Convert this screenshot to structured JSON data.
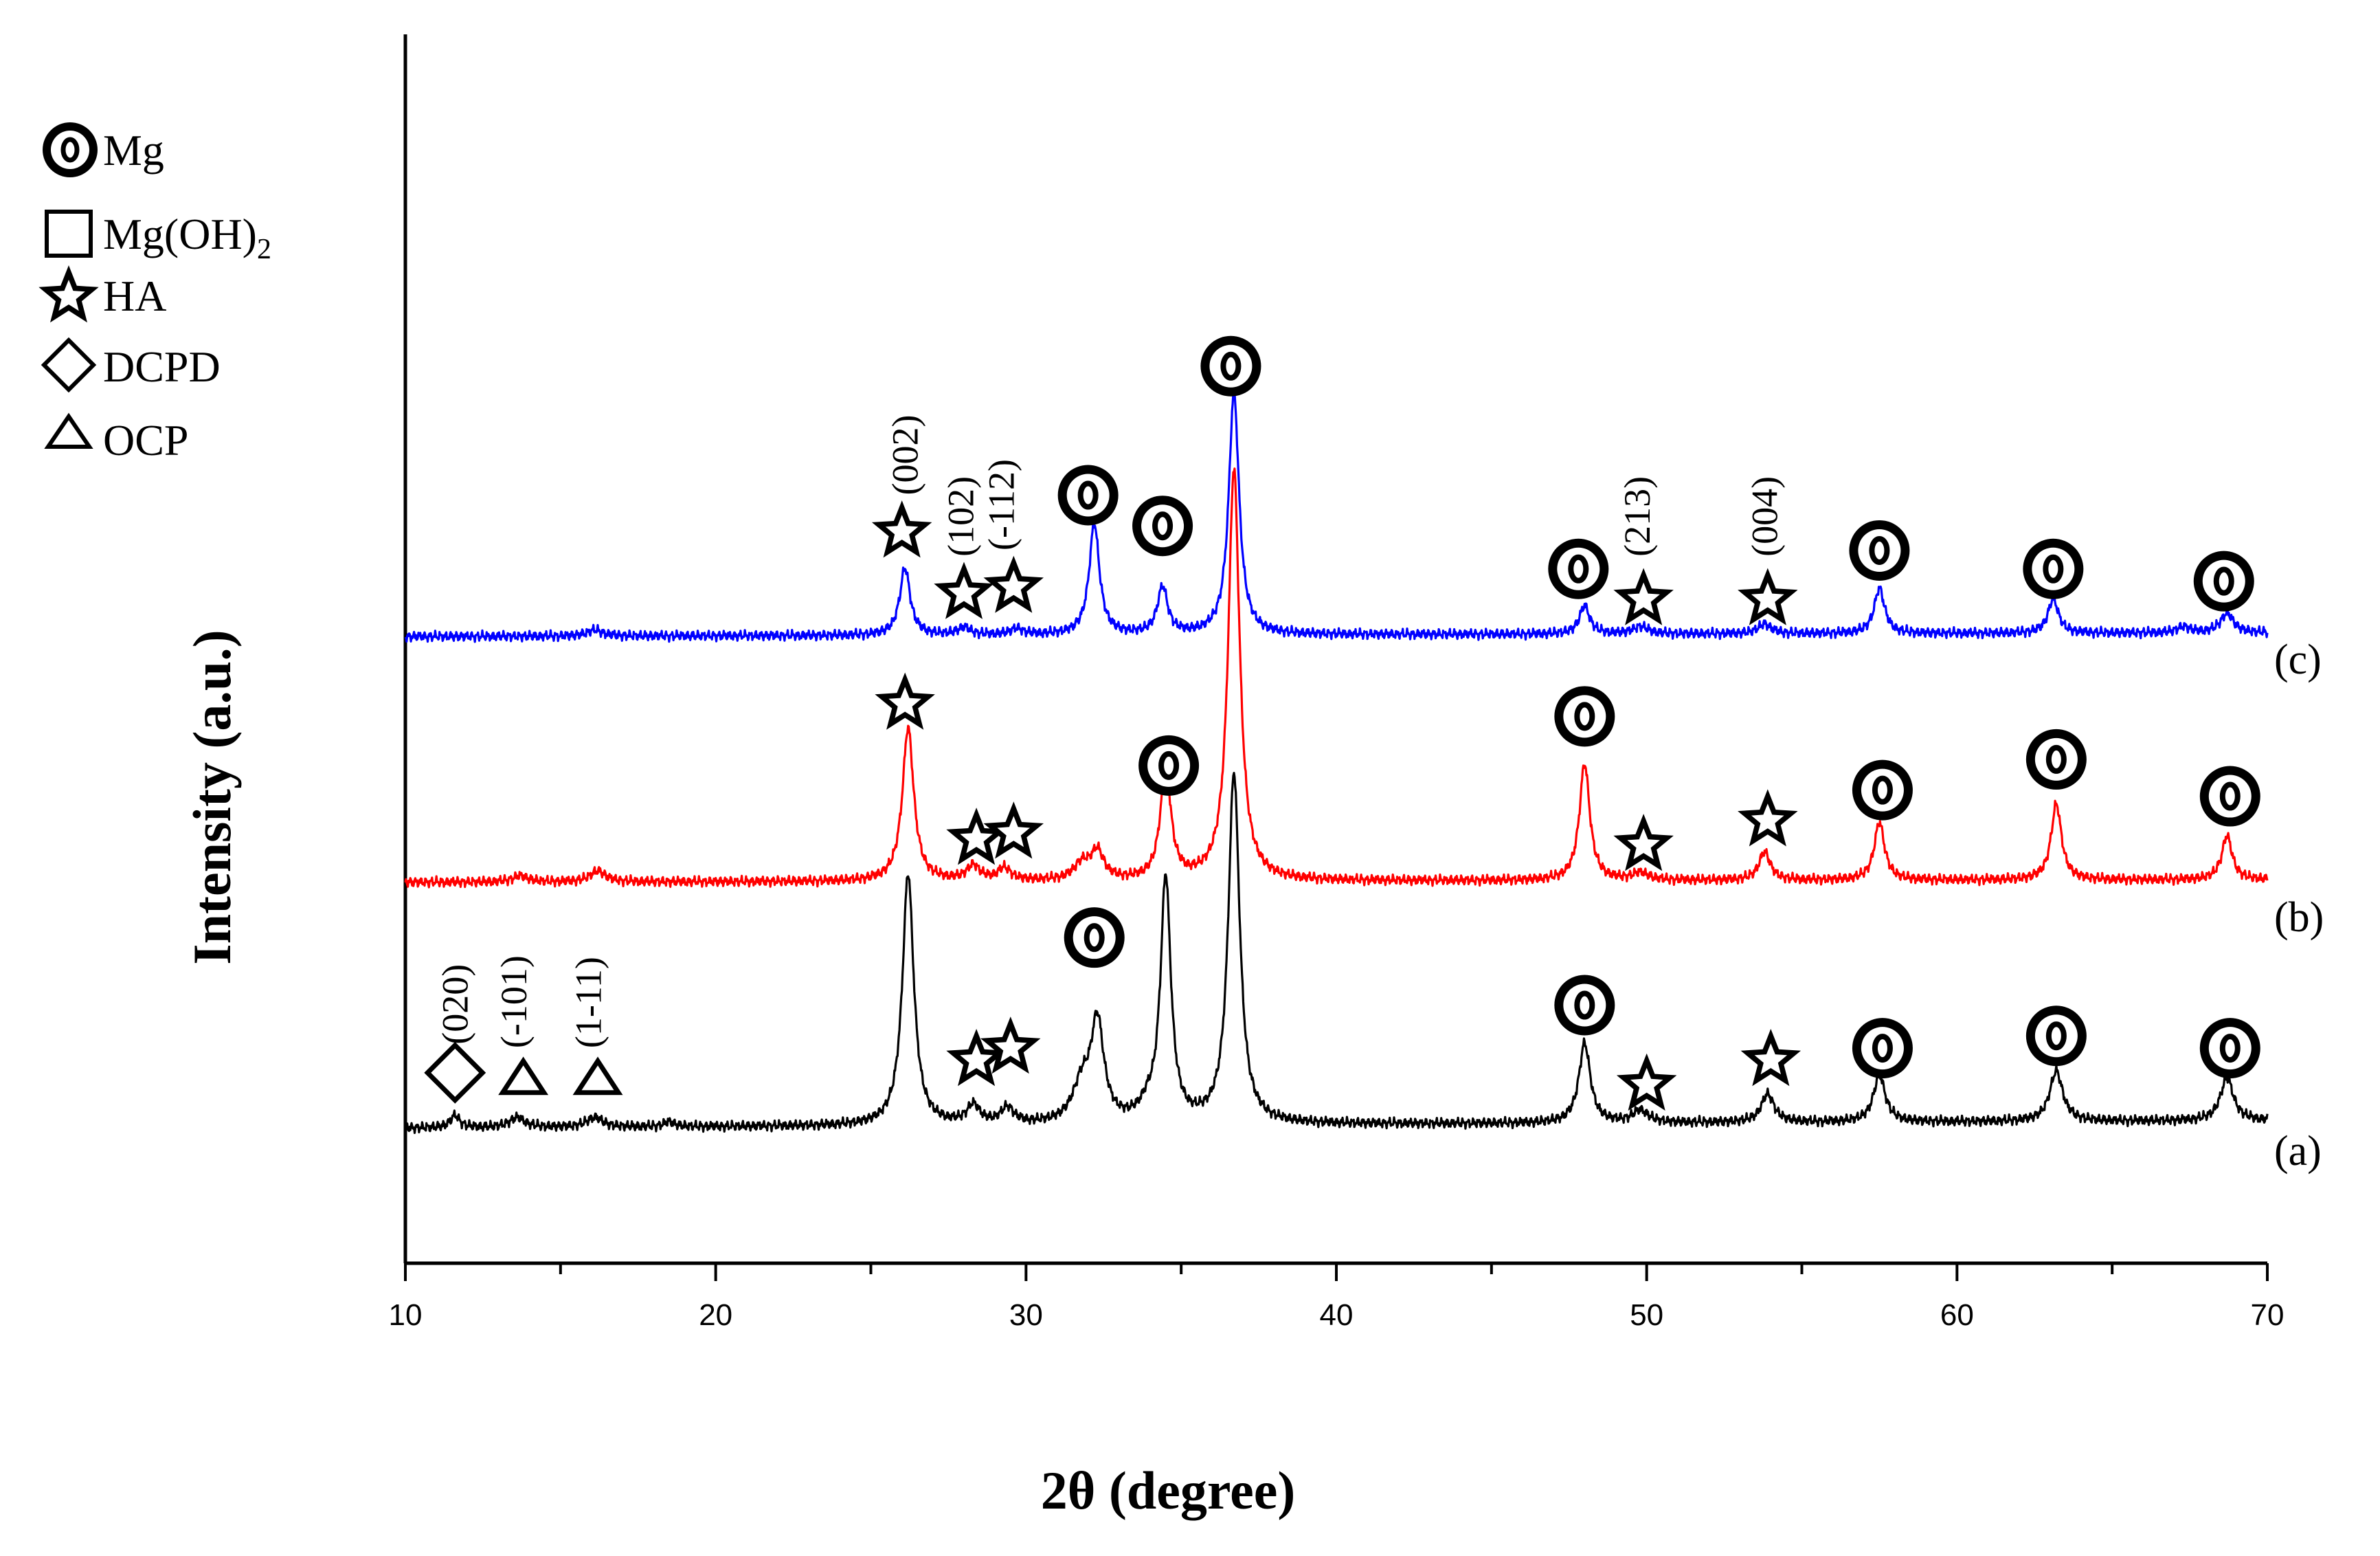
{
  "chart_data": {
    "type": "line",
    "title": "",
    "xlabel": "2θ (degree)",
    "ylabel": "Intensity (a.u.)",
    "xlim": [
      10,
      70
    ],
    "xticks": [
      10,
      20,
      30,
      40,
      50,
      60,
      70
    ],
    "xtick_labels": [
      "10",
      "20",
      "30",
      "40",
      "50",
      "60",
      "70"
    ],
    "ylim": [
      0,
      100
    ],
    "grid": false,
    "legend": {
      "position": "top-left",
      "entries": [
        {
          "marker": "mg",
          "label": "Mg"
        },
        {
          "marker": "square",
          "label": "Mg(OH)",
          "subscript": "2"
        },
        {
          "marker": "star",
          "label": "HA"
        },
        {
          "marker": "diamond",
          "label": "DCPD"
        },
        {
          "marker": "triangle",
          "label": "OCP"
        }
      ]
    },
    "series": [
      {
        "name": "(a)",
        "color": "#000000",
        "baseline": 11,
        "slope": 0.6,
        "peaks": [
          {
            "x": 11.6,
            "h": 1.0,
            "w": 0.18
          },
          {
            "x": 13.6,
            "h": 0.8,
            "w": 0.3
          },
          {
            "x": 16.1,
            "h": 0.8,
            "w": 0.3
          },
          {
            "x": 18.5,
            "h": 0.4,
            "w": 0.2
          },
          {
            "x": 26.2,
            "h": 20.5,
            "w": 0.22
          },
          {
            "x": 28.3,
            "h": 1.5,
            "w": 0.25
          },
          {
            "x": 29.4,
            "h": 1.3,
            "w": 0.25
          },
          {
            "x": 31.8,
            "h": 3.0,
            "w": 0.35
          },
          {
            "x": 32.3,
            "h": 8.0,
            "w": 0.25
          },
          {
            "x": 33.9,
            "h": 1.0,
            "w": 0.3
          },
          {
            "x": 34.5,
            "h": 19.9,
            "w": 0.2
          },
          {
            "x": 36.7,
            "h": 28.5,
            "w": 0.22
          },
          {
            "x": 48.0,
            "h": 6.5,
            "w": 0.22
          },
          {
            "x": 49.8,
            "h": 1.0,
            "w": 0.3
          },
          {
            "x": 53.9,
            "h": 2.3,
            "w": 0.25
          },
          {
            "x": 57.5,
            "h": 3.8,
            "w": 0.23
          },
          {
            "x": 63.2,
            "h": 4.1,
            "w": 0.25
          },
          {
            "x": 68.7,
            "h": 3.5,
            "w": 0.25
          }
        ]
      },
      {
        "name": "(b)",
        "color": "#ff0000",
        "baseline": 31,
        "slope": 0.2,
        "peaks": [
          {
            "x": 13.7,
            "h": 0.5,
            "w": 0.3
          },
          {
            "x": 16.2,
            "h": 0.9,
            "w": 0.3
          },
          {
            "x": 26.2,
            "h": 12.5,
            "w": 0.22
          },
          {
            "x": 28.3,
            "h": 1.2,
            "w": 0.25
          },
          {
            "x": 29.3,
            "h": 1.0,
            "w": 0.25
          },
          {
            "x": 31.8,
            "h": 1.3,
            "w": 0.3
          },
          {
            "x": 32.3,
            "h": 2.3,
            "w": 0.25
          },
          {
            "x": 34.5,
            "h": 9.3,
            "w": 0.2
          },
          {
            "x": 36.7,
            "h": 33.5,
            "w": 0.22
          },
          {
            "x": 48.0,
            "h": 9.5,
            "w": 0.2
          },
          {
            "x": 49.8,
            "h": 0.6,
            "w": 0.3
          },
          {
            "x": 53.8,
            "h": 2.3,
            "w": 0.22
          },
          {
            "x": 57.5,
            "h": 4.7,
            "w": 0.2
          },
          {
            "x": 63.2,
            "h": 6.2,
            "w": 0.2
          },
          {
            "x": 68.7,
            "h": 3.6,
            "w": 0.2
          }
        ]
      },
      {
        "name": "(c)",
        "color": "#0000ff",
        "baseline": 51,
        "slope": 0.3,
        "peaks": [
          {
            "x": 16.1,
            "h": 0.5,
            "w": 0.3
          },
          {
            "x": 26.1,
            "h": 5.5,
            "w": 0.2
          },
          {
            "x": 28.0,
            "h": 0.6,
            "w": 0.25
          },
          {
            "x": 29.7,
            "h": 0.5,
            "w": 0.25
          },
          {
            "x": 32.2,
            "h": 9.0,
            "w": 0.2
          },
          {
            "x": 34.4,
            "h": 3.8,
            "w": 0.2
          },
          {
            "x": 36.7,
            "h": 19.7,
            "w": 0.2
          },
          {
            "x": 48.0,
            "h": 2.3,
            "w": 0.2
          },
          {
            "x": 49.8,
            "h": 0.6,
            "w": 0.3
          },
          {
            "x": 53.8,
            "h": 0.8,
            "w": 0.25
          },
          {
            "x": 57.5,
            "h": 3.7,
            "w": 0.2
          },
          {
            "x": 63.1,
            "h": 2.8,
            "w": 0.2
          },
          {
            "x": 67.3,
            "h": 0.5,
            "w": 0.25
          },
          {
            "x": 68.7,
            "h": 1.6,
            "w": 0.25
          }
        ]
      }
    ],
    "series_labels": [
      {
        "text": "(a)",
        "y": 8
      },
      {
        "text": "(b)",
        "y": 27
      },
      {
        "text": "(c)",
        "y": 48
      }
    ],
    "phase_markers": [
      {
        "type": "diamond",
        "x": 11.6,
        "y": 15.5
      },
      {
        "type": "triangle",
        "x": 13.8,
        "y": 15.0
      },
      {
        "type": "triangle",
        "x": 16.2,
        "y": 15.0
      },
      {
        "type": "star",
        "x": 28.4,
        "y": 16.5
      },
      {
        "type": "star",
        "x": 29.5,
        "y": 17.5
      },
      {
        "type": "mg",
        "x": 32.2,
        "y": 26.5
      },
      {
        "type": "mg",
        "x": 48.0,
        "y": 21.0
      },
      {
        "type": "star",
        "x": 50.0,
        "y": 14.5
      },
      {
        "type": "star",
        "x": 54.0,
        "y": 16.5
      },
      {
        "type": "mg",
        "x": 57.6,
        "y": 17.5
      },
      {
        "type": "mg",
        "x": 63.2,
        "y": 18.5
      },
      {
        "type": "mg",
        "x": 68.8,
        "y": 17.5
      },
      {
        "type": "star",
        "x": 26.1,
        "y": 45.5
      },
      {
        "type": "star",
        "x": 28.4,
        "y": 34.5
      },
      {
        "type": "star",
        "x": 29.6,
        "y": 35.0
      },
      {
        "type": "mg",
        "x": 34.6,
        "y": 40.5
      },
      {
        "type": "mg",
        "x": 48.0,
        "y": 44.5
      },
      {
        "type": "star",
        "x": 49.9,
        "y": 34.0
      },
      {
        "type": "star",
        "x": 53.9,
        "y": 36.0
      },
      {
        "type": "mg",
        "x": 57.6,
        "y": 38.5
      },
      {
        "type": "mg",
        "x": 63.2,
        "y": 41.0
      },
      {
        "type": "mg",
        "x": 68.8,
        "y": 38.0
      },
      {
        "type": "star",
        "x": 26.0,
        "y": 59.5
      },
      {
        "type": "star",
        "x": 28.0,
        "y": 54.5
      },
      {
        "type": "star",
        "x": 29.6,
        "y": 55.0
      },
      {
        "type": "mg",
        "x": 32.0,
        "y": 62.5
      },
      {
        "type": "mg",
        "x": 34.4,
        "y": 60.0
      },
      {
        "type": "mg",
        "x": 36.6,
        "y": 73.0
      },
      {
        "type": "mg",
        "x": 47.8,
        "y": 56.5
      },
      {
        "type": "star",
        "x": 49.9,
        "y": 54.0
      },
      {
        "type": "star",
        "x": 53.9,
        "y": 54.0
      },
      {
        "type": "mg",
        "x": 57.5,
        "y": 58.0
      },
      {
        "type": "mg",
        "x": 63.1,
        "y": 56.5
      },
      {
        "type": "mg",
        "x": 68.6,
        "y": 55.5
      }
    ],
    "annotations": [
      {
        "text": "(020)",
        "x": 12.0,
        "y": 17.8
      },
      {
        "text": "(-101)",
        "x": 13.9,
        "y": 17.5
      },
      {
        "text": "(1-11)",
        "x": 16.3,
        "y": 17.5
      },
      {
        "text": "(002)",
        "x": 26.5,
        "y": 62.5
      },
      {
        "text": "(102)",
        "x": 28.3,
        "y": 57.5
      },
      {
        "text": "(-112)",
        "x": 29.6,
        "y": 58.0
      },
      {
        "text": "(213)",
        "x": 50.1,
        "y": 57.5
      },
      {
        "text": "(004)",
        "x": 54.2,
        "y": 57.5
      }
    ]
  }
}
